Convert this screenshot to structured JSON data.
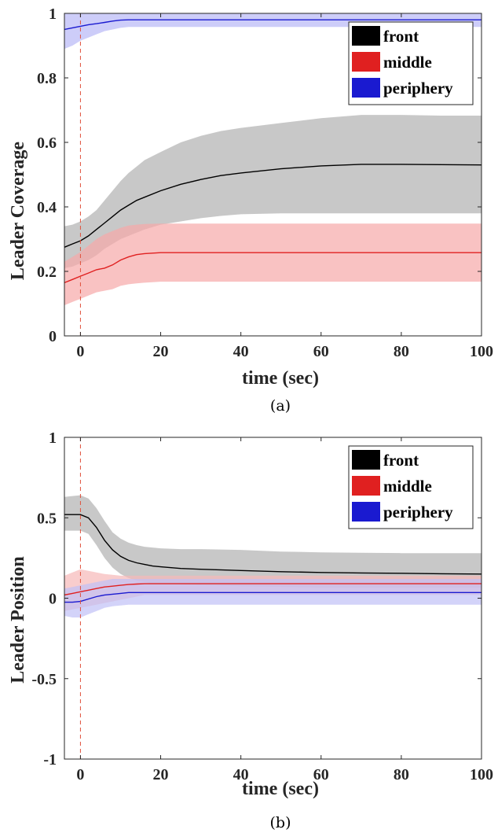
{
  "chart_data": [
    {
      "type": "line",
      "caption": "(a)",
      "xlabel": "time (sec)",
      "ylabel": "Leader Coverage",
      "xlim": [
        -4,
        100
      ],
      "ylim": [
        0,
        1
      ],
      "xticks": [
        0,
        20,
        40,
        60,
        80,
        100
      ],
      "yticks": [
        0,
        0.2,
        0.4,
        0.6,
        0.8,
        1
      ],
      "ytick_labels": [
        "0",
        "0.2",
        "0.4",
        "0.6",
        "0.8",
        "1"
      ],
      "vline_x": 0,
      "legend": {
        "position": "top-right",
        "entries": [
          "front",
          "middle",
          "periphery"
        ]
      },
      "series": [
        {
          "name": "front",
          "color": "#000000",
          "band_color": "#b0b0b0",
          "x": [
            -4,
            -2,
            0,
            2,
            4,
            6,
            8,
            10,
            12,
            14,
            16,
            20,
            25,
            30,
            35,
            40,
            50,
            60,
            70,
            80,
            90,
            100
          ],
          "y": [
            0.275,
            0.285,
            0.295,
            0.31,
            0.33,
            0.35,
            0.37,
            0.39,
            0.405,
            0.42,
            0.43,
            0.45,
            0.47,
            0.485,
            0.497,
            0.505,
            0.518,
            0.527,
            0.532,
            0.532,
            0.531,
            0.53
          ],
          "upper": [
            0.34,
            0.345,
            0.355,
            0.37,
            0.39,
            0.42,
            0.45,
            0.48,
            0.505,
            0.525,
            0.545,
            0.57,
            0.6,
            0.62,
            0.635,
            0.645,
            0.66,
            0.675,
            0.685,
            0.685,
            0.683,
            0.683
          ],
          "lower": [
            0.21,
            0.215,
            0.225,
            0.235,
            0.25,
            0.27,
            0.285,
            0.3,
            0.31,
            0.32,
            0.33,
            0.345,
            0.355,
            0.365,
            0.372,
            0.377,
            0.38,
            0.38,
            0.38,
            0.38,
            0.38,
            0.38
          ]
        },
        {
          "name": "middle",
          "color": "#e02020",
          "band_color": "#f7a8a8",
          "x": [
            -4,
            -2,
            0,
            2,
            4,
            6,
            8,
            10,
            12,
            14,
            16,
            20,
            30,
            40,
            60,
            80,
            100
          ],
          "y": [
            0.165,
            0.175,
            0.185,
            0.195,
            0.205,
            0.21,
            0.22,
            0.235,
            0.245,
            0.252,
            0.255,
            0.258,
            0.258,
            0.258,
            0.258,
            0.258,
            0.258
          ],
          "upper": [
            0.23,
            0.245,
            0.26,
            0.28,
            0.3,
            0.315,
            0.325,
            0.335,
            0.342,
            0.345,
            0.347,
            0.348,
            0.348,
            0.348,
            0.348,
            0.348,
            0.348
          ],
          "lower": [
            0.095,
            0.105,
            0.115,
            0.125,
            0.135,
            0.14,
            0.145,
            0.155,
            0.16,
            0.163,
            0.165,
            0.168,
            0.168,
            0.168,
            0.168,
            0.168,
            0.168
          ]
        },
        {
          "name": "periphery",
          "color": "#1a1ad0",
          "band_color": "#b8b8f7",
          "x": [
            -4,
            -2,
            0,
            2,
            4,
            6,
            8,
            10,
            12,
            14,
            16,
            20,
            40,
            60,
            80,
            100
          ],
          "y": [
            0.95,
            0.955,
            0.96,
            0.965,
            0.968,
            0.972,
            0.976,
            0.979,
            0.98,
            0.98,
            0.98,
            0.98,
            0.98,
            0.98,
            0.98,
            0.98
          ],
          "upper": [
            1.0,
            1.0,
            1.0,
            1.0,
            1.0,
            1.0,
            1.0,
            1.0,
            1.0,
            1.0,
            1.0,
            1.0,
            1.0,
            1.0,
            1.0,
            1.0
          ],
          "lower": [
            0.89,
            0.9,
            0.915,
            0.925,
            0.935,
            0.945,
            0.95,
            0.955,
            0.958,
            0.958,
            0.958,
            0.958,
            0.958,
            0.958,
            0.958,
            0.958
          ]
        }
      ]
    },
    {
      "type": "line",
      "caption": "(b)",
      "xlabel": "time (sec)",
      "ylabel": "Leader Position",
      "xlim": [
        -4,
        100
      ],
      "ylim": [
        -1,
        1
      ],
      "xticks": [
        0,
        20,
        40,
        60,
        80,
        100
      ],
      "yticks": [
        -1,
        -0.5,
        0,
        0.5,
        1
      ],
      "ytick_labels": [
        "-1",
        "-0.5",
        "0",
        "0.5",
        "1"
      ],
      "vline_x": 0,
      "legend": {
        "position": "top-right",
        "entries": [
          "front",
          "middle",
          "periphery"
        ]
      },
      "series": [
        {
          "name": "front",
          "color": "#000000",
          "band_color": "#b0b0b0",
          "x": [
            -4,
            -2,
            0,
            2,
            4,
            6,
            8,
            10,
            12,
            14,
            16,
            18,
            20,
            25,
            30,
            40,
            50,
            60,
            70,
            80,
            90,
            100
          ],
          "y": [
            0.52,
            0.52,
            0.52,
            0.5,
            0.44,
            0.36,
            0.3,
            0.26,
            0.235,
            0.22,
            0.21,
            0.2,
            0.195,
            0.185,
            0.18,
            0.172,
            0.165,
            0.16,
            0.157,
            0.155,
            0.152,
            0.15
          ],
          "upper": [
            0.63,
            0.635,
            0.64,
            0.62,
            0.56,
            0.48,
            0.41,
            0.37,
            0.345,
            0.33,
            0.32,
            0.315,
            0.31,
            0.305,
            0.305,
            0.3,
            0.29,
            0.285,
            0.282,
            0.28,
            0.28,
            0.28
          ],
          "lower": [
            0.42,
            0.42,
            0.42,
            0.4,
            0.33,
            0.25,
            0.19,
            0.15,
            0.125,
            0.11,
            0.1,
            0.09,
            0.09,
            0.085,
            0.08,
            0.075,
            0.07,
            0.065,
            0.065,
            0.065,
            0.065,
            0.065
          ]
        },
        {
          "name": "middle",
          "color": "#e02020",
          "band_color": "#f7b8b8",
          "x": [
            -4,
            -2,
            0,
            2,
            4,
            6,
            8,
            10,
            12,
            14,
            16,
            20,
            40,
            60,
            80,
            100
          ],
          "y": [
            0.02,
            0.03,
            0.04,
            0.05,
            0.06,
            0.07,
            0.075,
            0.08,
            0.085,
            0.088,
            0.09,
            0.09,
            0.09,
            0.09,
            0.09,
            0.09
          ],
          "upper": [
            0.14,
            0.16,
            0.18,
            0.17,
            0.16,
            0.15,
            0.145,
            0.14,
            0.14,
            0.14,
            0.14,
            0.14,
            0.14,
            0.14,
            0.14,
            0.14
          ],
          "lower": [
            -0.08,
            -0.07,
            -0.06,
            -0.05,
            -0.04,
            -0.03,
            -0.02,
            -0.01,
            0.0,
            0.01,
            0.02,
            0.02,
            0.02,
            0.02,
            0.02,
            0.02
          ]
        },
        {
          "name": "periphery",
          "color": "#1a1ad0",
          "band_color": "#c0c0f7",
          "x": [
            -4,
            -2,
            0,
            2,
            4,
            6,
            8,
            10,
            12,
            14,
            16,
            20,
            40,
            60,
            80,
            100
          ],
          "y": [
            -0.025,
            -0.025,
            -0.02,
            -0.005,
            0.01,
            0.02,
            0.025,
            0.03,
            0.035,
            0.035,
            0.035,
            0.035,
            0.035,
            0.035,
            0.035,
            0.035
          ],
          "upper": [
            0.06,
            0.07,
            0.08,
            0.09,
            0.1,
            0.11,
            0.12,
            0.12,
            0.12,
            0.12,
            0.12,
            0.12,
            0.12,
            0.12,
            0.12,
            0.12
          ],
          "lower": [
            -0.11,
            -0.12,
            -0.12,
            -0.1,
            -0.08,
            -0.06,
            -0.05,
            -0.045,
            -0.04,
            -0.04,
            -0.04,
            -0.04,
            -0.04,
            -0.04,
            -0.04,
            -0.04
          ]
        }
      ]
    }
  ]
}
